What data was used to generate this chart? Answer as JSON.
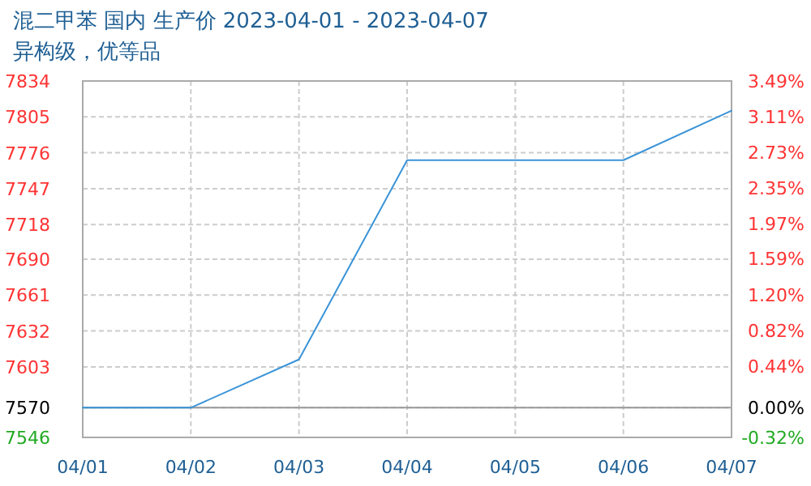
{
  "chart_data": {
    "type": "line",
    "title": "混二甲苯 国内 生产价 2023-04-01 - 2023-04-07",
    "subtitle": "异构级，优等品",
    "x": [
      "2023-04-01",
      "2023-04-02",
      "2023-04-03",
      "2023-04-04",
      "2023-04-05",
      "2023-04-06",
      "2023-04-07"
    ],
    "series": [
      {
        "color": "#3a94d8",
        "values": [
          7570,
          7570,
          7609,
          7770,
          7770,
          7770,
          7810
        ]
      }
    ],
    "xlim": [
      "2023-04-01",
      "2023-04-07"
    ],
    "xticks": [
      {
        "value": "2023-04-01",
        "label": "04/01"
      },
      {
        "value": "2023-04-02",
        "label": "04/02"
      },
      {
        "value": "2023-04-03",
        "label": "04/03"
      },
      {
        "value": "2023-04-04",
        "label": "04/04"
      },
      {
        "value": "2023-04-05",
        "label": "04/05"
      },
      {
        "value": "2023-04-06",
        "label": "04/06"
      },
      {
        "value": "2023-04-07",
        "label": "04/07"
      }
    ],
    "ylim": [
      7546,
      7834
    ],
    "yticks": [
      7546,
      7570,
      7603,
      7632,
      7661,
      7690,
      7718,
      7747,
      7776,
      7805,
      7834
    ],
    "y2lim": [
      -0.32,
      3.49
    ],
    "y2ticks": [
      {
        "value": -0.32,
        "label": "-0.32%"
      },
      {
        "value": 0,
        "label": "0.00%"
      },
      {
        "value": 0.44,
        "label": "0.44%"
      },
      {
        "value": 0.82,
        "label": "0.82%"
      },
      {
        "value": 1.2,
        "label": "1.20%"
      },
      {
        "value": 1.59,
        "label": "1.59%"
      },
      {
        "value": 1.97,
        "label": "1.97%"
      },
      {
        "value": 2.35,
        "label": "2.35%"
      },
      {
        "value": 2.73,
        "label": "2.73%"
      },
      {
        "value": 3.11,
        "label": "3.11%"
      },
      {
        "value": 3.49,
        "label": "3.49%"
      }
    ],
    "ref_lines": [
      {
        "axis": "y",
        "value": 7570,
        "color": "#999999"
      }
    ],
    "grid": true
  }
}
